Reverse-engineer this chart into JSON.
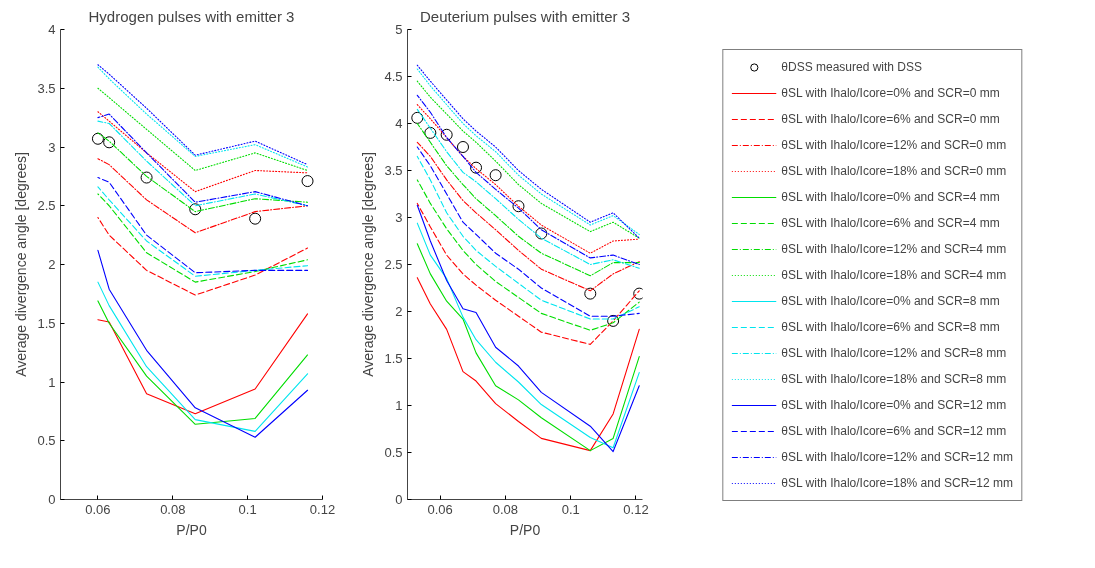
{
  "chart_data": [
    {
      "type": "line",
      "title": "Hydrogen pulses with emitter 3",
      "xlabel": "P/P0",
      "ylabel": "Average divergence angle [degrees]",
      "x": [
        0.06,
        0.063,
        0.073,
        0.086,
        0.102,
        0.116
      ],
      "xlim": [
        0.05,
        0.12
      ],
      "xticks": [
        0.06,
        0.08,
        0.1,
        0.12
      ],
      "ylim": [
        0,
        4
      ],
      "yticks": [
        0,
        0.5,
        1,
        1.5,
        2,
        2.5,
        3,
        3.5,
        4
      ],
      "series": [
        {
          "type": "scatter",
          "marker": "circle",
          "color": "#000000",
          "values": [
            3.07,
            3.04,
            2.74,
            2.47,
            2.39,
            2.71
          ]
        },
        {
          "color": "#ff0000",
          "line_style": "solid",
          "values": [
            1.53,
            1.51,
            0.9,
            0.73,
            0.94,
            1.58
          ]
        },
        {
          "color": "#ff0000",
          "line_style": "dashed",
          "values": [
            2.4,
            2.25,
            1.95,
            1.74,
            1.91,
            2.14
          ]
        },
        {
          "color": "#ff0000",
          "line_style": "dashdot",
          "values": [
            2.9,
            2.85,
            2.55,
            2.27,
            2.45,
            2.5
          ]
        },
        {
          "color": "#ff0000",
          "line_style": "dotted",
          "values": [
            3.3,
            3.22,
            2.95,
            2.62,
            2.8,
            2.78
          ]
        },
        {
          "color": "#00dd00",
          "line_style": "solid",
          "values": [
            1.69,
            1.5,
            1.05,
            0.64,
            0.69,
            1.23
          ]
        },
        {
          "color": "#00dd00",
          "line_style": "dashed",
          "values": [
            2.6,
            2.5,
            2.1,
            1.85,
            1.94,
            2.04
          ]
        },
        {
          "color": "#00dd00",
          "line_style": "dashdot",
          "values": [
            3.12,
            3.05,
            2.75,
            2.45,
            2.56,
            2.53
          ]
        },
        {
          "color": "#00dd00",
          "line_style": "dotted",
          "values": [
            3.5,
            3.42,
            3.15,
            2.8,
            2.95,
            2.8
          ]
        },
        {
          "color": "#00e5ee",
          "line_style": "solid",
          "values": [
            1.85,
            1.65,
            1.13,
            0.68,
            0.58,
            1.07
          ]
        },
        {
          "color": "#00e5ee",
          "line_style": "dashed",
          "values": [
            2.66,
            2.55,
            2.2,
            1.9,
            1.95,
            1.99
          ]
        },
        {
          "color": "#00e5ee",
          "line_style": "dashdot",
          "values": [
            3.22,
            3.2,
            2.88,
            2.5,
            2.6,
            2.5
          ]
        },
        {
          "color": "#00e5ee",
          "line_style": "dotted",
          "values": [
            3.68,
            3.58,
            3.28,
            2.92,
            3.02,
            2.83
          ]
        },
        {
          "color": "#0000ff",
          "line_style": "solid",
          "values": [
            2.12,
            1.79,
            1.27,
            0.78,
            0.53,
            0.93
          ]
        },
        {
          "color": "#0000ff",
          "line_style": "dashed",
          "values": [
            2.74,
            2.7,
            2.25,
            1.93,
            1.95,
            1.95
          ]
        },
        {
          "color": "#0000ff",
          "line_style": "dashdot",
          "values": [
            3.25,
            3.28,
            2.95,
            2.53,
            2.62,
            2.5
          ]
        },
        {
          "color": "#0000ff",
          "line_style": "dotted",
          "values": [
            3.7,
            3.62,
            3.33,
            2.93,
            3.05,
            2.85
          ]
        }
      ]
    },
    {
      "type": "line",
      "title": "Deuterium pulses with emitter 3",
      "xlabel": "P/P0",
      "ylabel": "Average divergence angle [degrees]",
      "legend": "right",
      "x": [
        0.053,
        0.057,
        0.062,
        0.067,
        0.071,
        0.077,
        0.084,
        0.091,
        0.106,
        0.113,
        0.121
      ],
      "xlim": [
        0.05,
        0.122
      ],
      "xticks": [
        0.06,
        0.08,
        0.1,
        0.12
      ],
      "ylim": [
        0,
        5
      ],
      "yticks": [
        0,
        0.5,
        1,
        1.5,
        2,
        2.5,
        3,
        3.5,
        4,
        4.5,
        5
      ],
      "series": [
        {
          "type": "scatter",
          "marker": "circle",
          "name": "θDSS measured with DSS",
          "color": "#000000",
          "values": [
            4.06,
            3.9,
            3.88,
            3.75,
            3.53,
            3.45,
            3.12,
            2.83,
            2.19,
            1.9,
            2.19
          ]
        },
        {
          "name": "θSL with Ihalo/Icore=0% and SCR=0 mm",
          "color": "#ff0000",
          "line_style": "solid",
          "values": [
            2.36,
            2.08,
            1.81,
            1.36,
            1.26,
            1.02,
            0.83,
            0.65,
            0.52,
            0.91,
            1.81
          ]
        },
        {
          "name": "θSL with Ihalo/Icore=6% and SCR=0 mm",
          "color": "#ff0000",
          "line_style": "dashed",
          "values": [
            3.15,
            2.9,
            2.6,
            2.4,
            2.28,
            2.12,
            1.95,
            1.78,
            1.65,
            1.9,
            2.22
          ]
        },
        {
          "name": "θSL with Ihalo/Icore=12% and SCR=0 mm",
          "color": "#ff0000",
          "line_style": "dashdot",
          "values": [
            3.8,
            3.65,
            3.4,
            3.18,
            3.05,
            2.87,
            2.65,
            2.45,
            2.22,
            2.4,
            2.53
          ]
        },
        {
          "name": "θSL with Ihalo/Icore=18% and SCR=0 mm",
          "color": "#ff0000",
          "line_style": "dotted",
          "values": [
            4.2,
            4.05,
            3.85,
            3.65,
            3.52,
            3.35,
            3.12,
            2.92,
            2.62,
            2.75,
            2.77
          ]
        },
        {
          "name": "θSL with Ihalo/Icore=0% and SCR=4 mm",
          "color": "#00dd00",
          "line_style": "solid",
          "values": [
            2.72,
            2.4,
            2.11,
            1.92,
            1.56,
            1.21,
            1.06,
            0.87,
            0.52,
            0.65,
            1.52
          ]
        },
        {
          "name": "θSL with Ihalo/Icore=6% and SCR=4 mm",
          "color": "#00dd00",
          "line_style": "dashed",
          "values": [
            3.4,
            3.15,
            2.88,
            2.65,
            2.5,
            2.32,
            2.15,
            1.98,
            1.8,
            1.88,
            2.1
          ]
        },
        {
          "name": "θSL with Ihalo/Icore=12% and SCR=4 mm",
          "color": "#00dd00",
          "line_style": "dashdot",
          "values": [
            4.0,
            3.8,
            3.55,
            3.35,
            3.2,
            3.02,
            2.8,
            2.62,
            2.38,
            2.52,
            2.52
          ]
        },
        {
          "name": "θSL with Ihalo/Icore=18% and SCR=4 mm",
          "color": "#00dd00",
          "line_style": "dotted",
          "values": [
            4.45,
            4.28,
            4.1,
            3.92,
            3.8,
            3.6,
            3.35,
            3.15,
            2.85,
            2.95,
            2.78
          ]
        },
        {
          "name": "θSL with Ihalo/Icore=0% and SCR=8 mm",
          "color": "#00e5ee",
          "line_style": "solid",
          "values": [
            2.94,
            2.6,
            2.35,
            1.94,
            1.7,
            1.46,
            1.25,
            1.01,
            0.66,
            0.55,
            1.35
          ]
        },
        {
          "name": "θSL with Ihalo/Icore=6% and SCR=8 mm",
          "color": "#00e5ee",
          "line_style": "dashed",
          "values": [
            3.65,
            3.4,
            3.05,
            2.8,
            2.65,
            2.48,
            2.3,
            2.12,
            1.92,
            1.92,
            2.05
          ]
        },
        {
          "name": "θSL with Ihalo/Icore=12% and SCR=8 mm",
          "color": "#00e5ee",
          "line_style": "dashdot",
          "values": [
            4.15,
            3.95,
            3.7,
            3.48,
            3.38,
            3.2,
            2.98,
            2.78,
            2.5,
            2.55,
            2.46
          ]
        },
        {
          "name": "θSL with Ihalo/Icore=18% and SCR=8 mm",
          "color": "#00e5ee",
          "line_style": "dotted",
          "values": [
            4.58,
            4.4,
            4.2,
            4.0,
            3.87,
            3.7,
            3.45,
            3.25,
            2.92,
            3.02,
            2.82
          ]
        },
        {
          "name": "θSL with Ihalo/Icore=0% and SCR=12 mm",
          "color": "#0000ff",
          "line_style": "solid",
          "values": [
            3.13,
            2.75,
            2.33,
            2.03,
            1.99,
            1.62,
            1.42,
            1.14,
            0.78,
            0.51,
            1.21
          ]
        },
        {
          "name": "θSL with Ihalo/Icore=6% and SCR=12 mm",
          "color": "#0000ff",
          "line_style": "dashed",
          "values": [
            3.75,
            3.55,
            3.25,
            2.95,
            2.82,
            2.62,
            2.45,
            2.25,
            1.95,
            1.95,
            1.98
          ]
        },
        {
          "name": "θSL with Ihalo/Icore=12% and SCR=12 mm",
          "color": "#0000ff",
          "line_style": "dashdot",
          "values": [
            4.3,
            4.12,
            3.85,
            3.65,
            3.48,
            3.3,
            3.1,
            2.87,
            2.57,
            2.6,
            2.5
          ]
        },
        {
          "name": "θSL with Ihalo/Icore=18% and SCR=12 mm",
          "color": "#0000ff",
          "line_style": "dotted",
          "values": [
            4.62,
            4.45,
            4.25,
            4.05,
            3.92,
            3.75,
            3.5,
            3.3,
            2.95,
            3.05,
            2.78
          ]
        }
      ]
    }
  ]
}
